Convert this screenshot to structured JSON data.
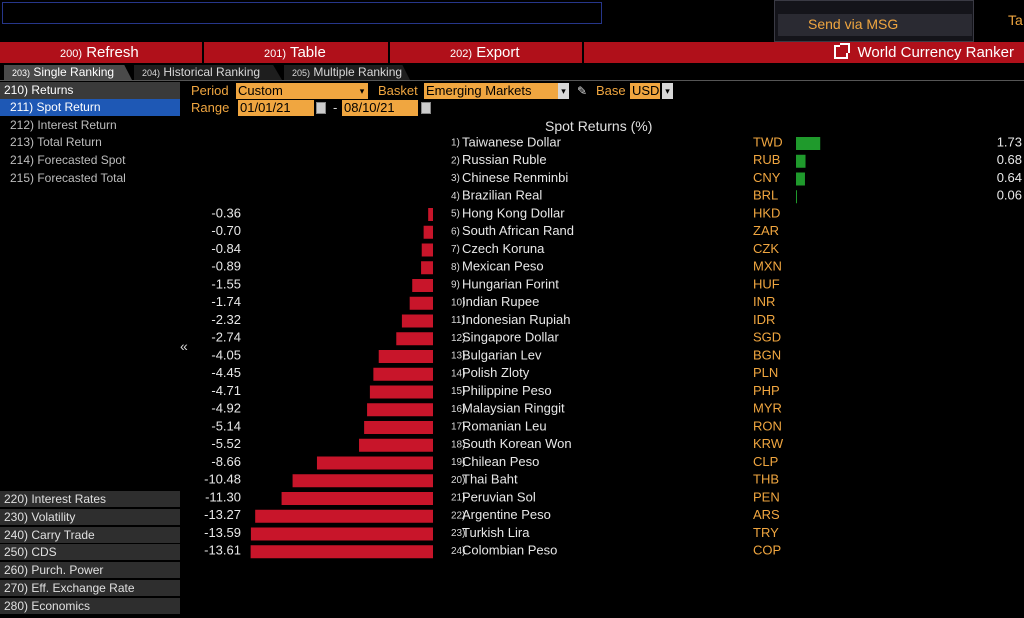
{
  "top": {
    "send_msg": "Send via MSG",
    "right_edge": "Ta"
  },
  "redbar": {
    "refresh": {
      "num": "200)",
      "label": "Refresh"
    },
    "table": {
      "num": "201)",
      "label": "Table"
    },
    "export": {
      "num": "202)",
      "label": "Export"
    },
    "title": "World Currency Ranker"
  },
  "tabs": [
    {
      "num": "203)",
      "label": "Single Ranking"
    },
    {
      "num": "204)",
      "label": "Historical Ranking"
    },
    {
      "num": "205)",
      "label": "Multiple Ranking"
    }
  ],
  "nav": {
    "returns": "210) Returns",
    "sub": [
      "211) Spot Return",
      "212) Interest Return",
      "213) Total Return",
      "214) Forecasted Spot",
      "215) Forecasted Total"
    ],
    "selected_index": 0,
    "groups": [
      "220) Interest Rates",
      "230) Volatility",
      "240) Carry Trade",
      "250) CDS",
      "260) Purch. Power",
      "270) Eff. Exchange Rate",
      "280) Economics"
    ],
    "collapse_glyph": "«"
  },
  "controls": {
    "period_label": "Period",
    "period_value": "Custom",
    "basket_label": "Basket",
    "basket_value": "Emerging Markets",
    "base_label": "Base",
    "base_value": "USD",
    "range_label": "Range",
    "range_start": "01/01/21",
    "range_sep": "-",
    "range_end": "08/10/21"
  },
  "colors": {
    "accent": "#f0a640",
    "negative": "#c8152a",
    "positive": "#1f9a2c",
    "selected": "#1e58b5"
  },
  "chart_data": {
    "type": "bar",
    "title": "Spot Returns (%)",
    "rows": [
      {
        "rank": "1)",
        "name": "Taiwanese Dollar",
        "code": "TWD",
        "value": 1.73
      },
      {
        "rank": "2)",
        "name": "Russian Ruble",
        "code": "RUB",
        "value": 0.68
      },
      {
        "rank": "3)",
        "name": "Chinese Renminbi",
        "code": "CNY",
        "value": 0.64
      },
      {
        "rank": "4)",
        "name": "Brazilian Real",
        "code": "BRL",
        "value": 0.06
      },
      {
        "rank": "5)",
        "name": "Hong Kong Dollar",
        "code": "HKD",
        "value": -0.36
      },
      {
        "rank": "6)",
        "name": "South African Rand",
        "code": "ZAR",
        "value": -0.7
      },
      {
        "rank": "7)",
        "name": "Czech Koruna",
        "code": "CZK",
        "value": -0.84
      },
      {
        "rank": "8)",
        "name": "Mexican Peso",
        "code": "MXN",
        "value": -0.89
      },
      {
        "rank": "9)",
        "name": "Hungarian Forint",
        "code": "HUF",
        "value": -1.55
      },
      {
        "rank": "10)",
        "name": "Indian Rupee",
        "code": "INR",
        "value": -1.74
      },
      {
        "rank": "11)",
        "name": "Indonesian Rupiah",
        "code": "IDR",
        "value": -2.32
      },
      {
        "rank": "12)",
        "name": "Singapore Dollar",
        "code": "SGD",
        "value": -2.74
      },
      {
        "rank": "13)",
        "name": "Bulgarian Lev",
        "code": "BGN",
        "value": -4.05
      },
      {
        "rank": "14)",
        "name": "Polish Zloty",
        "code": "PLN",
        "value": -4.45
      },
      {
        "rank": "15)",
        "name": "Philippine Peso",
        "code": "PHP",
        "value": -4.71
      },
      {
        "rank": "16)",
        "name": "Malaysian Ringgit",
        "code": "MYR",
        "value": -4.92
      },
      {
        "rank": "17)",
        "name": "Romanian Leu",
        "code": "RON",
        "value": -5.14
      },
      {
        "rank": "18)",
        "name": "South Korean Won",
        "code": "KRW",
        "value": -5.52
      },
      {
        "rank": "19)",
        "name": "Chilean Peso",
        "code": "CLP",
        "value": -8.66
      },
      {
        "rank": "20)",
        "name": "Thai Baht",
        "code": "THB",
        "value": -10.48
      },
      {
        "rank": "21)",
        "name": "Peruvian Sol",
        "code": "PEN",
        "value": -11.3
      },
      {
        "rank": "22)",
        "name": "Argentine Peso",
        "code": "ARS",
        "value": -13.27
      },
      {
        "rank": "23)",
        "name": "Turkish Lira",
        "code": "TRY",
        "value": -13.59
      },
      {
        "rank": "24)",
        "name": "Colombian Peso",
        "code": "COP",
        "value": -13.61
      }
    ]
  }
}
